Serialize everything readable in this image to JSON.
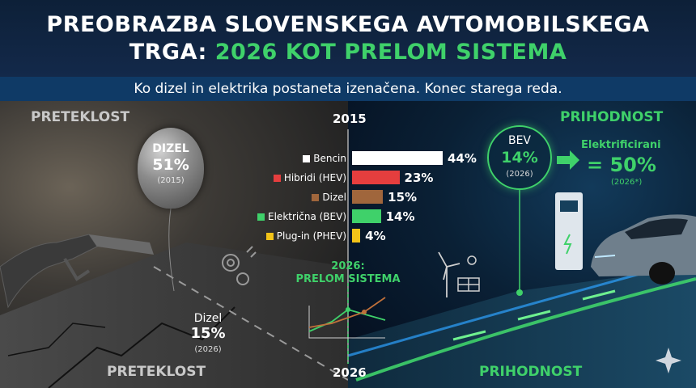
{
  "header": {
    "title_line1": "PREOBRAZBA SLOVENSKEGA AVTOMOBILSKEGA",
    "title_line2_white": "TRGA: ",
    "title_line2_green": "2026 KOT PRELOM SISTEMA",
    "subtitle": "Ko dizel in elektrika postaneta izenačena. Konec starega reda."
  },
  "labels": {
    "past_top": "PRETEKLOST",
    "future_top": "PRIHODNOST",
    "past_bottom": "PRETEKLOST",
    "future_bottom": "PRIHODNOST",
    "year_top": "2015",
    "year_bottom": "2026"
  },
  "balloon": {
    "name": "DIZEL",
    "value": "51%",
    "sub": "(2015)"
  },
  "bars": [
    {
      "label": "Bencin",
      "value": 44,
      "display": "44%",
      "color": "#ffffff"
    },
    {
      "label": "Hibridi (HEV)",
      "value": 23,
      "display": "23%",
      "color": "#e53e3e"
    },
    {
      "label": "Dizel",
      "value": 15,
      "display": "15%",
      "color": "#a0663c"
    },
    {
      "label": "Električna (BEV)",
      "value": 14,
      "display": "14%",
      "color": "#3fd16a"
    },
    {
      "label": "Plug-in (PHEV)",
      "value": 4,
      "display": "4%",
      "color": "#f2c318"
    }
  ],
  "bev": {
    "name": "BEV",
    "value": "14%",
    "sub": "(2026)"
  },
  "electrified": {
    "title": "Elektrificirani",
    "value": "= 50%",
    "sub": "(2026*)"
  },
  "break": {
    "line1": "2026:",
    "line2": "PRELOM SISTEMA"
  },
  "diesel_2026": {
    "name": "Dizel",
    "value": "15%",
    "sub": "(2026)"
  },
  "colors": {
    "accent": "#3fd16a",
    "header": "#13294a",
    "subbar": "#0f3a66"
  },
  "icons": [
    "gear-icon",
    "wind-turbine-icon",
    "solar-panel-icon",
    "fuel-nozzle-icon",
    "ev-charger-icon",
    "electric-car-icon",
    "sparkle-icon"
  ]
}
